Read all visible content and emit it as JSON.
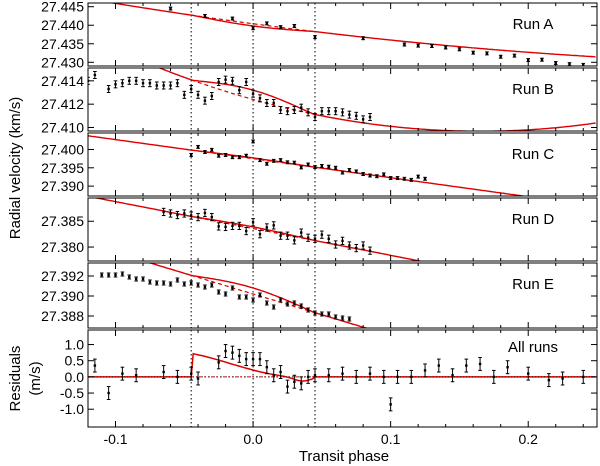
{
  "chart_data": {
    "type": "scatter",
    "x_label": "Transit phase",
    "x_ticks": [
      -0.1,
      0.0,
      0.1,
      0.2
    ],
    "x_tick_labels": [
      "-0.1",
      "0.0",
      "0.1",
      "0.2"
    ],
    "xlim": [
      -0.12,
      0.25
    ],
    "transit_markers": [
      -0.045,
      0.0,
      0.045
    ],
    "shared_ylabel": "Radial velocity (km/s)",
    "colors": {
      "model": "#dd0000",
      "points": "#000000",
      "guides": "#000000"
    },
    "panels": [
      {
        "name": "Run A",
        "ylim": [
          27.429,
          27.446
        ],
        "yticks": [
          27.445,
          27.44,
          27.435,
          27.43
        ],
        "ytick_labels": [
          "27.445",
          "27.440",
          "27.435",
          "27.430"
        ],
        "err": 0.0004,
        "model": {
          "y0": 27.4404,
          "slope": -0.0495,
          "curv": 0.055,
          "rm": 0.0006,
          "rm_sign": -1
        },
        "x": [
          -0.06,
          -0.035,
          -0.015,
          0.0,
          0.01,
          0.02,
          0.03,
          0.045,
          0.08,
          0.11,
          0.12,
          0.13,
          0.14,
          0.15,
          0.16,
          0.17,
          0.18,
          0.19,
          0.2,
          0.21,
          0.22,
          0.23,
          0.24
        ],
        "y": [
          27.4445,
          27.4425,
          27.4418,
          27.4392,
          27.4405,
          27.4395,
          27.4398,
          27.4368,
          27.4365,
          27.4348,
          27.4345,
          27.4344,
          27.434,
          27.4335,
          27.4326,
          27.4324,
          27.4315,
          27.4318,
          27.4306,
          27.4307,
          27.4298,
          27.4295,
          27.4293
        ]
      },
      {
        "name": "Run B",
        "ylim": [
          27.4097,
          27.4151
        ],
        "yticks": [
          27.414,
          27.412,
          27.41
        ],
        "ytick_labels": [
          "27.414",
          "27.412",
          "27.410"
        ],
        "err": 0.0003,
        "model": {
          "y0": 27.4124,
          "slope": -0.033,
          "curv": 0.1,
          "rm": 0.0008,
          "rm_sign": 1
        },
        "x": [
          -0.12,
          -0.115,
          -0.105,
          -0.1,
          -0.095,
          -0.09,
          -0.085,
          -0.08,
          -0.075,
          -0.07,
          -0.065,
          -0.06,
          -0.055,
          -0.05,
          -0.045,
          -0.04,
          -0.035,
          -0.03,
          -0.025,
          -0.02,
          -0.015,
          -0.01,
          -0.005,
          0.0,
          0.005,
          0.01,
          0.015,
          0.02,
          0.025,
          0.03,
          0.035,
          0.04,
          0.045,
          0.05,
          0.055,
          0.06,
          0.065,
          0.07,
          0.075,
          0.08,
          0.085
        ],
        "y": [
          27.414,
          27.4145,
          27.4133,
          27.4137,
          27.4138,
          27.414,
          27.414,
          27.4138,
          27.4138,
          27.4136,
          27.4136,
          27.4136,
          27.4138,
          27.4128,
          27.4133,
          27.4128,
          27.4123,
          27.4127,
          27.4139,
          27.4141,
          27.414,
          27.4132,
          27.4139,
          27.4129,
          27.4125,
          27.4121,
          27.4121,
          27.4115,
          27.4114,
          27.4115,
          27.4117,
          27.4113,
          27.4109,
          27.4114,
          27.4114,
          27.4114,
          27.4113,
          27.4111,
          27.411,
          27.4107,
          27.4109
        ]
      },
      {
        "name": "Run C",
        "ylim": [
          27.3873,
          27.4045
        ],
        "yticks": [
          27.4,
          27.395,
          27.39
        ],
        "ytick_labels": [
          "27.400",
          "27.395",
          "27.390"
        ],
        "err": 0.0004,
        "model": {
          "y0": 27.3975,
          "slope": -0.052,
          "curv": 0.0,
          "rm": 0.0002,
          "rm_sign": 1
        },
        "x": [
          -0.045,
          -0.04,
          -0.035,
          -0.03,
          -0.025,
          -0.02,
          -0.015,
          -0.01,
          -0.005,
          0.0,
          0.005,
          0.01,
          0.015,
          0.02,
          0.025,
          0.03,
          0.035,
          0.04,
          0.045,
          0.05,
          0.055,
          0.06,
          0.065,
          0.07,
          0.075,
          0.08,
          0.085,
          0.09,
          0.095,
          0.1,
          0.105,
          0.11,
          0.115,
          0.12,
          0.125
        ],
        "y": [
          27.3985,
          27.4007,
          27.3993,
          27.3999,
          27.3983,
          27.3985,
          27.3979,
          27.3979,
          27.3983,
          27.4022,
          27.3971,
          27.3961,
          27.3969,
          27.3971,
          27.3965,
          27.3964,
          27.3951,
          27.3959,
          27.3952,
          27.3955,
          27.3953,
          27.395,
          27.3937,
          27.3944,
          27.394,
          27.3933,
          27.3929,
          27.3927,
          27.3932,
          27.3922,
          27.3922,
          27.392,
          27.3917,
          27.3926,
          27.392
        ]
      },
      {
        "name": "Run D",
        "ylim": [
          27.3773,
          27.3895
        ],
        "yticks": [
          27.385,
          27.38
        ],
        "ytick_labels": [
          "27.385",
          "27.380"
        ],
        "err": 0.0007,
        "model": {
          "y0": 27.3836,
          "slope": -0.052,
          "curv": 0.0,
          "rm": 0.0003,
          "rm_sign": 1
        },
        "x": [
          -0.065,
          -0.06,
          -0.055,
          -0.05,
          -0.045,
          -0.04,
          -0.035,
          -0.03,
          -0.025,
          -0.02,
          -0.015,
          -0.01,
          -0.005,
          0.0,
          0.005,
          0.01,
          0.015,
          0.02,
          0.025,
          0.03,
          0.035,
          0.04,
          0.045,
          0.05,
          0.055,
          0.06,
          0.065,
          0.07,
          0.075,
          0.08,
          0.085
        ],
        "y": [
          27.3868,
          27.3865,
          27.3862,
          27.3865,
          27.3861,
          27.3858,
          27.3866,
          27.3858,
          27.384,
          27.3839,
          27.3841,
          27.3841,
          27.3831,
          27.3848,
          27.3825,
          27.3838,
          27.3842,
          27.3822,
          27.3822,
          27.3813,
          27.3828,
          27.3818,
          27.3816,
          27.3824,
          27.3816,
          27.3805,
          27.3812,
          27.3803,
          27.3798,
          27.3803,
          27.3793
        ]
      },
      {
        "name": "Run E",
        "ylim": [
          27.3868,
          27.3933
        ],
        "yticks": [
          27.392,
          27.39,
          27.388
        ],
        "ytick_labels": [
          "27.392",
          "27.390",
          "27.388"
        ],
        "err": 0.0002,
        "model": {
          "y0": 27.3902,
          "slope": -0.0415,
          "curv": 0.0,
          "rm": 0.0006,
          "rm_sign": 1
        },
        "x": [
          -0.11,
          -0.105,
          -0.1,
          -0.095,
          -0.09,
          -0.085,
          -0.08,
          -0.075,
          -0.07,
          -0.065,
          -0.06,
          -0.055,
          -0.05,
          -0.045,
          -0.04,
          -0.035,
          -0.03,
          -0.025,
          -0.02,
          -0.015,
          -0.01,
          -0.005,
          0.0,
          0.005,
          0.01,
          0.015,
          0.02,
          0.025,
          0.03,
          0.035,
          0.04,
          0.045,
          0.05,
          0.055,
          0.06,
          0.065,
          0.07
        ],
        "y": [
          27.3921,
          27.3921,
          27.3921,
          27.3922,
          27.3919,
          27.3917,
          27.3917,
          27.3914,
          27.3913,
          27.3913,
          27.3912,
          27.3916,
          27.3912,
          27.3913,
          27.3911,
          27.3909,
          27.3911,
          27.3904,
          27.3902,
          27.3908,
          27.3899,
          27.3899,
          27.3896,
          27.3901,
          27.3893,
          27.3889,
          27.3896,
          27.3892,
          27.3893,
          27.389,
          27.3886,
          27.3883,
          27.3882,
          27.3882,
          27.3879,
          27.3878,
          27.3877
        ]
      },
      {
        "name": "All runs",
        "residual": true,
        "ylabel_lines": [
          "Residuals",
          "(m/s)"
        ],
        "ylim": [
          -1.55,
          1.45
        ],
        "yticks": [
          1.0,
          0.5,
          0.0,
          -0.5,
          -1.0
        ],
        "ytick_labels": [
          "1.0",
          "0.5",
          "0.0",
          "-0.5",
          "-1.0"
        ],
        "err": 0.2,
        "x": [
          -0.115,
          -0.105,
          -0.095,
          -0.085,
          -0.065,
          -0.055,
          -0.045,
          -0.04,
          -0.025,
          -0.02,
          -0.015,
          -0.01,
          -0.005,
          0.0,
          0.005,
          0.01,
          0.015,
          0.02,
          0.025,
          0.03,
          0.035,
          0.04,
          0.045,
          0.055,
          0.065,
          0.075,
          0.085,
          0.095,
          0.1,
          0.105,
          0.115,
          0.125,
          0.135,
          0.145,
          0.155,
          0.165,
          0.175,
          0.185,
          0.2,
          0.215,
          0.225,
          0.24
        ],
        "y": [
          0.35,
          -0.5,
          0.1,
          0.05,
          0.15,
          0.0,
          0.1,
          -0.05,
          0.45,
          0.8,
          0.75,
          0.65,
          0.55,
          0.55,
          0.55,
          0.3,
          0.05,
          0.15,
          -0.3,
          -0.15,
          -0.2,
          0.0,
          0.05,
          0.05,
          0.1,
          0.0,
          0.1,
          0.0,
          -0.85,
          0.0,
          0.0,
          0.2,
          0.35,
          0.05,
          0.35,
          0.4,
          0.0,
          0.3,
          0.1,
          -0.1,
          -0.05,
          0.0
        ]
      }
    ]
  }
}
